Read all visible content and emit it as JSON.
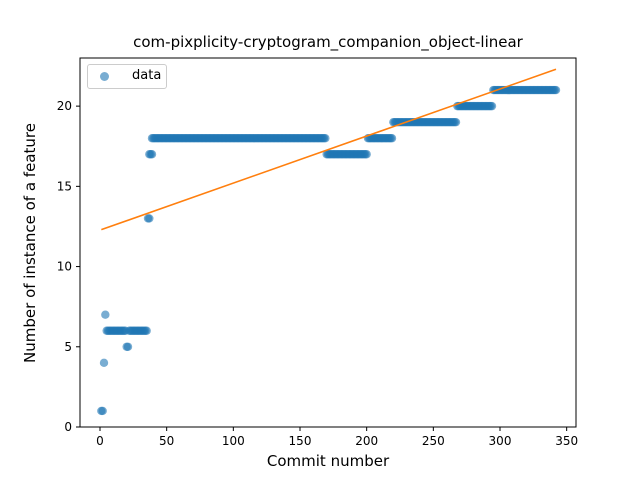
{
  "chart_data": {
    "type": "scatter",
    "title": "com-pixplicity-cryptogram_companion_object-linear",
    "xlabel": "Commit number",
    "ylabel": "Number of instance of a feature",
    "xlim": [
      -15,
      357
    ],
    "ylim": [
      0,
      23
    ],
    "xticks": [
      0,
      50,
      100,
      150,
      200,
      250,
      300,
      350
    ],
    "yticks": [
      0,
      5,
      10,
      15,
      20
    ],
    "legend": {
      "position": "top-left",
      "entries": [
        "data"
      ]
    },
    "colors": {
      "data": "#1f77b4",
      "fit": "#ff7f0e"
    },
    "series": [
      {
        "name": "data",
        "kind": "scatter",
        "segments": [
          {
            "x_start": 1,
            "x_end": 2,
            "y": 1
          },
          {
            "x_start": 3,
            "x_end": 3,
            "y": 4
          },
          {
            "x_start": 4,
            "x_end": 4,
            "y": 7
          },
          {
            "x_start": 5,
            "x_end": 19,
            "y": 6
          },
          {
            "x_start": 20,
            "x_end": 21,
            "y": 5
          },
          {
            "x_start": 22,
            "x_end": 35,
            "y": 6
          },
          {
            "x_start": 36,
            "x_end": 37,
            "y": 13
          },
          {
            "x_start": 37,
            "x_end": 39,
            "y": 17
          },
          {
            "x_start": 39,
            "x_end": 169,
            "y": 18
          },
          {
            "x_start": 170,
            "x_end": 200,
            "y": 17
          },
          {
            "x_start": 201,
            "x_end": 219,
            "y": 18
          },
          {
            "x_start": 220,
            "x_end": 267,
            "y": 19
          },
          {
            "x_start": 268,
            "x_end": 294,
            "y": 20
          },
          {
            "x_start": 295,
            "x_end": 342,
            "y": 21
          }
        ]
      },
      {
        "kind": "line",
        "x": [
          1,
          342
        ],
        "y": [
          12.3,
          22.3
        ]
      }
    ]
  }
}
